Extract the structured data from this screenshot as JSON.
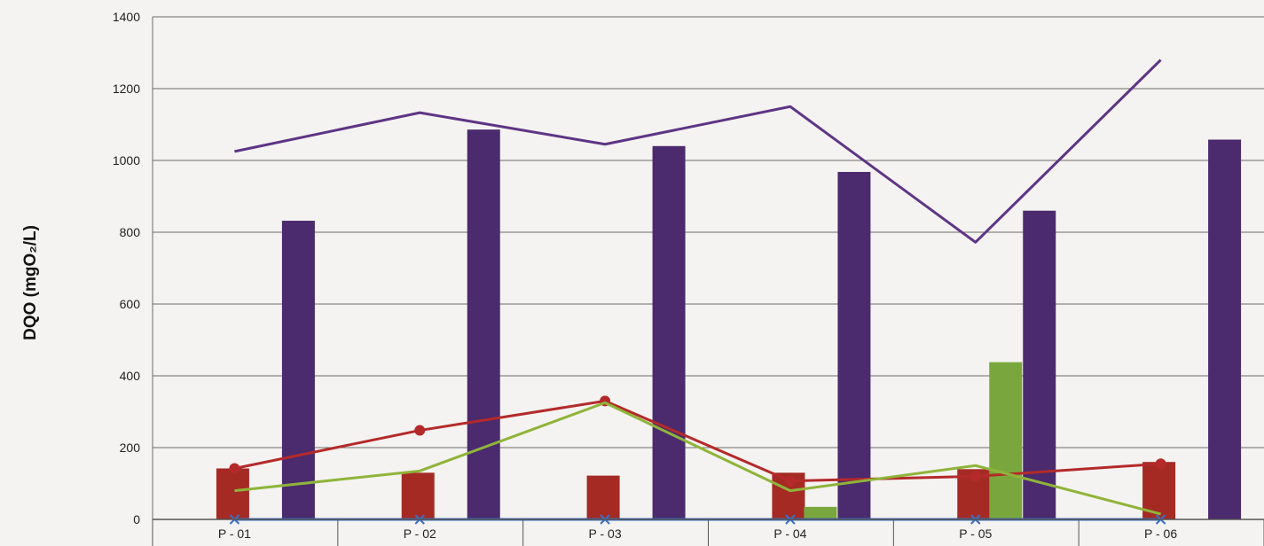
{
  "chart_data": {
    "type": "bar",
    "title": "",
    "xlabel": "",
    "ylabel": "DQO (mgO₂/L)",
    "ylim": [
      0,
      1400
    ],
    "yticks": [
      0,
      200,
      400,
      600,
      800,
      1000,
      1200,
      1400
    ],
    "grid": true,
    "categories": [
      "P - 01",
      "P - 02",
      "P - 03",
      "P - 04",
      "P - 05",
      "P - 06"
    ],
    "bar_series": [
      {
        "color": "#a52a24",
        "values": [
          142,
          130,
          122,
          130,
          140,
          160
        ]
      },
      {
        "color": "#7aa73d",
        "values": [
          null,
          null,
          null,
          35,
          438,
          null
        ]
      },
      {
        "color": "#4b2a6e",
        "values": [
          832,
          1086,
          1040,
          968,
          860,
          1058
        ]
      }
    ],
    "line_series": [
      {
        "color": "#5e3585",
        "marker": "none",
        "values": [
          1025,
          1133,
          1045,
          1150,
          772,
          1280
        ]
      },
      {
        "color": "#b42a2a",
        "marker": "circle",
        "values": [
          142,
          248,
          330,
          107,
          120,
          155
        ]
      },
      {
        "color": "#8fb43a",
        "marker": "none",
        "values": [
          80,
          135,
          325,
          80,
          150,
          15
        ]
      },
      {
        "color": "#3b6fc2",
        "marker": "x",
        "values": [
          0,
          0,
          0,
          0,
          0,
          0
        ]
      }
    ]
  }
}
